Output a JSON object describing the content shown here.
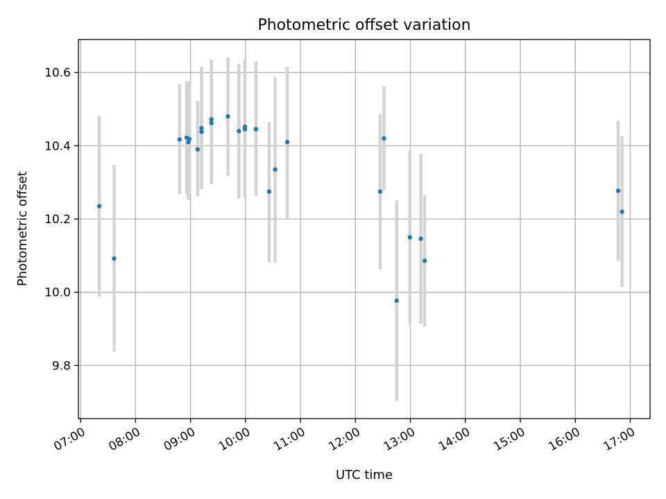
{
  "chart_data": {
    "type": "scatter",
    "title": "Photometric offset variation",
    "xlabel": "UTC time",
    "ylabel": "Photometric offset",
    "x_unit": "hour of day (UTC)",
    "xlim": [
      6.96,
      17.36
    ],
    "ylim": [
      9.655,
      10.69
    ],
    "xticks": [
      {
        "value": 7,
        "label": "07:00"
      },
      {
        "value": 8,
        "label": "08:00"
      },
      {
        "value": 9,
        "label": "09:00"
      },
      {
        "value": 10,
        "label": "10:00"
      },
      {
        "value": 11,
        "label": "11:00"
      },
      {
        "value": 12,
        "label": "12:00"
      },
      {
        "value": 13,
        "label": "13:00"
      },
      {
        "value": 14,
        "label": "14:00"
      },
      {
        "value": 15,
        "label": "15:00"
      },
      {
        "value": 16,
        "label": "16:00"
      },
      {
        "value": 17,
        "label": "17:00"
      }
    ],
    "yticks": [
      {
        "value": 9.8,
        "label": "9.8"
      },
      {
        "value": 10.0,
        "label": "10.0"
      },
      {
        "value": 10.2,
        "label": "10.2"
      },
      {
        "value": 10.4,
        "label": "10.4"
      },
      {
        "value": 10.6,
        "label": "10.6"
      }
    ],
    "grid": true,
    "point_color": "#1f77b4",
    "errorbar_color": "#d3d3d3",
    "points": [
      {
        "x": 7.34,
        "y": 10.235,
        "ylo": 9.988,
        "yhi": 10.482
      },
      {
        "x": 7.61,
        "y": 10.092,
        "ylo": 9.838,
        "yhi": 10.348
      },
      {
        "x": 8.8,
        "y": 10.417,
        "ylo": 10.268,
        "yhi": 10.568
      },
      {
        "x": 8.93,
        "y": 10.422,
        "ylo": 10.268,
        "yhi": 10.576
      },
      {
        "x": 8.96,
        "y": 10.41,
        "ylo": 10.252,
        "yhi": 10.576
      },
      {
        "x": 8.98,
        "y": 10.418,
        "ylo": 10.268,
        "yhi": 10.568
      },
      {
        "x": 9.13,
        "y": 10.39,
        "ylo": 10.262,
        "yhi": 10.522
      },
      {
        "x": 9.2,
        "y": 10.448,
        "ylo": 10.282,
        "yhi": 10.616
      },
      {
        "x": 9.2,
        "y": 10.438,
        "ylo": 10.282,
        "yhi": 10.616
      },
      {
        "x": 9.38,
        "y": 10.472,
        "ylo": 10.295,
        "yhi": 10.635
      },
      {
        "x": 9.38,
        "y": 10.462,
        "ylo": 10.295,
        "yhi": 10.635
      },
      {
        "x": 9.68,
        "y": 10.48,
        "ylo": 10.318,
        "yhi": 10.642
      },
      {
        "x": 9.88,
        "y": 10.44,
        "ylo": 10.256,
        "yhi": 10.624
      },
      {
        "x": 9.99,
        "y": 10.452,
        "ylo": 10.258,
        "yhi": 10.635
      },
      {
        "x": 9.99,
        "y": 10.445,
        "ylo": 10.258,
        "yhi": 10.635
      },
      {
        "x": 10.19,
        "y": 10.445,
        "ylo": 10.262,
        "yhi": 10.63
      },
      {
        "x": 10.43,
        "y": 10.275,
        "ylo": 10.082,
        "yhi": 10.465
      },
      {
        "x": 10.54,
        "y": 10.335,
        "ylo": 10.082,
        "yhi": 10.588
      },
      {
        "x": 10.76,
        "y": 10.41,
        "ylo": 10.202,
        "yhi": 10.615
      },
      {
        "x": 12.45,
        "y": 10.275,
        "ylo": 10.062,
        "yhi": 10.487
      },
      {
        "x": 12.52,
        "y": 10.42,
        "ylo": 10.278,
        "yhi": 10.562
      },
      {
        "x": 12.75,
        "y": 9.977,
        "ylo": 9.703,
        "yhi": 10.25
      },
      {
        "x": 12.99,
        "y": 10.15,
        "ylo": 9.912,
        "yhi": 10.388
      },
      {
        "x": 13.19,
        "y": 10.146,
        "ylo": 9.914,
        "yhi": 10.378
      },
      {
        "x": 13.26,
        "y": 10.086,
        "ylo": 9.906,
        "yhi": 10.265
      },
      {
        "x": 16.78,
        "y": 10.277,
        "ylo": 10.086,
        "yhi": 10.468
      },
      {
        "x": 16.85,
        "y": 10.22,
        "ylo": 10.014,
        "yhi": 10.426
      }
    ]
  }
}
